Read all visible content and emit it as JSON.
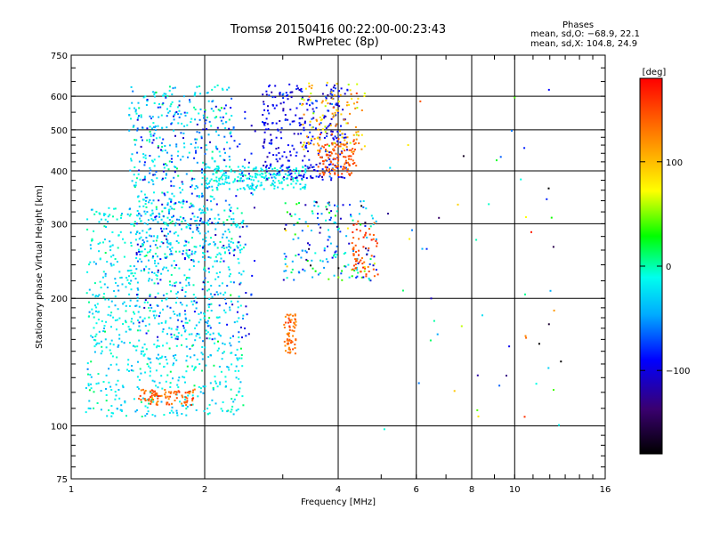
{
  "header": {
    "title_line1": "Tromsø 20150416 00:22:00-00:23:43",
    "title_line2": "RwPretec (8p)",
    "phases_label": "Phases",
    "stats_o": "mean, sd,O: −68.9, 22.1",
    "stats_x": "mean, sd,X: 104.8, 24.9"
  },
  "colorbar": {
    "unit_label": "[deg]",
    "range": [
      -180,
      180
    ],
    "ticks": [
      {
        "value": 100,
        "label": "100"
      },
      {
        "value": 0,
        "label": "0"
      },
      {
        "value": -100,
        "label": "−100"
      }
    ]
  },
  "chart_data": {
    "type": "scatter",
    "xlabel": "Frequency [MHz]",
    "ylabel": "Stationary phase Virtual Height [km]",
    "xscale": "log",
    "yscale": "log",
    "xlim": [
      1,
      16
    ],
    "ylim": [
      75,
      750
    ],
    "xticks": [
      {
        "value": 1,
        "label": "1"
      },
      {
        "value": 2,
        "label": "2"
      },
      {
        "value": 4,
        "label": "4"
      },
      {
        "value": 6,
        "label": "6"
      },
      {
        "value": 8,
        "label": "8"
      },
      {
        "value": 10,
        "label": "10"
      },
      {
        "value": 16,
        "label": "16"
      }
    ],
    "yticks": [
      {
        "value": 75,
        "label": "75"
      },
      {
        "value": 100,
        "label": "100"
      },
      {
        "value": 200,
        "label": "200"
      },
      {
        "value": 300,
        "label": "300"
      },
      {
        "value": 400,
        "label": "400"
      },
      {
        "value": 500,
        "label": "500"
      },
      {
        "value": 600,
        "label": "600"
      },
      {
        "value": 750,
        "label": "750"
      }
    ],
    "xgrid": [
      2,
      4,
      6,
      8,
      10
    ],
    "ygrid": [
      100,
      200,
      300,
      400,
      500,
      600
    ],
    "color_by": "phase_deg",
    "clusters": [
      {
        "name": "low-band cyan",
        "fmin": 1.08,
        "fmax": 2.45,
        "hmin": 105,
        "hmax": 330,
        "phase": -20,
        "phase_sd": 15,
        "count": 900
      },
      {
        "name": "low-band cyan upper",
        "fmin": 1.35,
        "fmax": 2.3,
        "hmin": 250,
        "hmax": 640,
        "phase": -25,
        "phase_sd": 20,
        "count": 450
      },
      {
        "name": "low-band blue",
        "fmin": 1.4,
        "fmax": 2.6,
        "hmin": 160,
        "hmax": 600,
        "phase": -85,
        "phase_sd": 20,
        "count": 260
      },
      {
        "name": "low orange trace",
        "fmin": 1.42,
        "fmax": 1.9,
        "hmin": 112,
        "hmax": 122,
        "phase": 140,
        "phase_sd": 15,
        "count": 90
      },
      {
        "name": "E-layer orange",
        "fmin": 3.02,
        "fmax": 3.22,
        "hmin": 145,
        "hmax": 185,
        "phase": 140,
        "phase_sd": 15,
        "count": 60
      },
      {
        "name": "F-trace cyan",
        "fmin": 2.0,
        "fmax": 3.4,
        "hmin": 360,
        "hmax": 410,
        "phase": -15,
        "phase_sd": 10,
        "count": 200
      },
      {
        "name": "F-trace blue",
        "fmin": 2.7,
        "fmax": 4.2,
        "hmin": 380,
        "hmax": 640,
        "phase": -95,
        "phase_sd": 15,
        "count": 320
      },
      {
        "name": "X-trace orange",
        "fmin": 3.6,
        "fmax": 4.4,
        "hmin": 390,
        "hmax": 470,
        "phase": 145,
        "phase_sd": 10,
        "count": 110
      },
      {
        "name": "upper yellow",
        "fmin": 3.3,
        "fmax": 4.6,
        "hmin": 440,
        "hmax": 650,
        "phase": 100,
        "phase_sd": 25,
        "count": 120
      },
      {
        "name": "mid mixed",
        "fmin": 3.0,
        "fmax": 4.9,
        "hmin": 220,
        "hmax": 340,
        "phase": -40,
        "phase_sd": 60,
        "count": 180
      },
      {
        "name": "orange patch 4.6",
        "fmin": 4.3,
        "fmax": 4.95,
        "hmin": 225,
        "hmax": 305,
        "phase": 150,
        "phase_sd": 10,
        "count": 60
      },
      {
        "name": "sparse high freq",
        "fmin": 5.0,
        "fmax": 13.0,
        "hmin": 95,
        "hmax": 640,
        "phase": 0,
        "phase_sd": 100,
        "count": 55
      }
    ]
  }
}
